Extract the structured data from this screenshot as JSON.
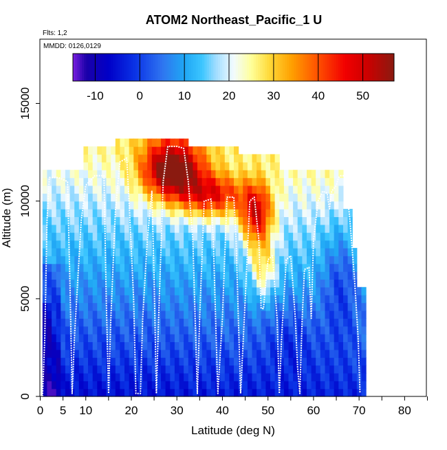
{
  "chart_data": {
    "type": "heatmap",
    "title": "ATOM2 Northeast_Pacific_1 U",
    "flights_note": "Flts: 1,2",
    "dates_note": "MMDD: 0126,0129",
    "xlabel": "Latitude (deg N)",
    "ylabel": "Altitude (m)",
    "xlim": [
      0,
      85
    ],
    "ylim": [
      0,
      17500
    ],
    "x_ticks": [
      0,
      5,
      10,
      20,
      30,
      40,
      50,
      60,
      70,
      80
    ],
    "x_minor_ticks": [
      15,
      25,
      35,
      45,
      55,
      65,
      75,
      85
    ],
    "y_ticks": [
      0,
      5000,
      10000,
      15000
    ],
    "colorbar": {
      "min": -15,
      "max": 57,
      "ticks": [
        -10,
        0,
        10,
        20,
        30,
        40,
        50
      ],
      "stops": [
        {
          "v": -15,
          "c": "#7a1fe0"
        },
        {
          "v": -12,
          "c": "#1a00a8"
        },
        {
          "v": -7,
          "c": "#0000c8"
        },
        {
          "v": -1,
          "c": "#0a33e6"
        },
        {
          "v": 5,
          "c": "#2f74f0"
        },
        {
          "v": 10,
          "c": "#1fa6f4"
        },
        {
          "v": 14,
          "c": "#3cc6ff"
        },
        {
          "v": 17,
          "c": "#9fdcff"
        },
        {
          "v": 21,
          "c": "#f2fbff"
        },
        {
          "v": 25,
          "c": "#ffff9a"
        },
        {
          "v": 29,
          "c": "#ffda3a"
        },
        {
          "v": 34,
          "c": "#ffa000"
        },
        {
          "v": 40,
          "c": "#ff4f00"
        },
        {
          "v": 46,
          "c": "#f20000"
        },
        {
          "v": 51,
          "c": "#cc0000"
        },
        {
          "v": 57,
          "c": "#8a1a10"
        }
      ]
    },
    "grid": false,
    "legend": "colorbar top",
    "flight_track": [
      [
        0.5,
        0
      ],
      [
        1,
        3000
      ],
      [
        1.5,
        9000
      ],
      [
        2,
        11200
      ],
      [
        4,
        11200
      ],
      [
        6,
        11000
      ],
      [
        6.6,
        5000
      ],
      [
        7,
        150
      ],
      [
        7.5,
        3000
      ],
      [
        9,
        9000
      ],
      [
        10,
        10800
      ],
      [
        12,
        11300
      ],
      [
        14,
        11300
      ],
      [
        14.5,
        5000
      ],
      [
        15,
        150
      ],
      [
        15.5,
        4000
      ],
      [
        16.5,
        9500
      ],
      [
        17.5,
        12000
      ],
      [
        19,
        12200
      ],
      [
        19.5,
        10000
      ],
      [
        20.5,
        5000
      ],
      [
        21,
        150
      ],
      [
        22,
        150
      ],
      [
        22.5,
        4000
      ],
      [
        23.5,
        8000
      ],
      [
        24.5,
        10500
      ],
      [
        25,
        6000
      ],
      [
        25.5,
        150
      ],
      [
        26,
        4000
      ],
      [
        27,
        11000
      ],
      [
        28,
        12800
      ],
      [
        30,
        12800
      ],
      [
        31.5,
        12700
      ],
      [
        32.5,
        11000
      ],
      [
        33.5,
        8000
      ],
      [
        34.5,
        150
      ],
      [
        35,
        4000
      ],
      [
        36,
        10000
      ],
      [
        37.5,
        10100
      ],
      [
        38,
        8000
      ],
      [
        38.5,
        4000
      ],
      [
        39,
        150
      ],
      [
        40,
        4000
      ],
      [
        41,
        10200
      ],
      [
        42.5,
        10200
      ],
      [
        43,
        8000
      ],
      [
        43.5,
        4000
      ],
      [
        44,
        150
      ],
      [
        45,
        5000
      ],
      [
        46,
        10000
      ],
      [
        47,
        10200
      ],
      [
        48,
        8000
      ],
      [
        48.5,
        4500
      ],
      [
        49,
        4500
      ],
      [
        50,
        7000
      ],
      [
        51,
        7200
      ],
      [
        52,
        4000
      ],
      [
        52.5,
        150
      ],
      [
        53,
        3000
      ],
      [
        54,
        7000
      ],
      [
        55,
        7200
      ],
      [
        56,
        4000
      ],
      [
        56.5,
        1500
      ],
      [
        57,
        150
      ],
      [
        57.5,
        4000
      ],
      [
        58,
        6500
      ],
      [
        59,
        6600
      ],
      [
        59.5,
        4000
      ],
      [
        60,
        8000
      ],
      [
        61,
        10000
      ],
      [
        62,
        10500
      ],
      [
        63,
        10400
      ],
      [
        63.5,
        9600
      ],
      [
        64,
        10500
      ],
      [
        65,
        10800
      ],
      [
        65.5,
        11200
      ],
      [
        66,
        11300
      ],
      [
        67,
        11300
      ],
      [
        68,
        9000
      ],
      [
        69,
        6000
      ],
      [
        69.8,
        3000
      ],
      [
        70.2,
        150
      ]
    ]
  }
}
